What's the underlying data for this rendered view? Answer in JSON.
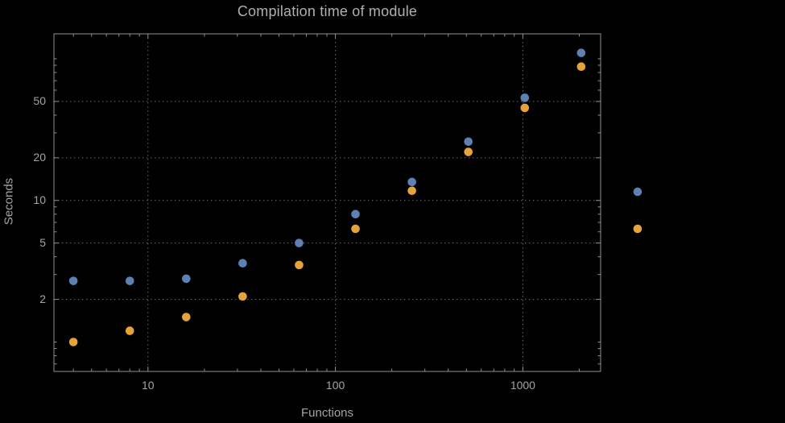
{
  "page": {
    "background": "#000000"
  },
  "chart_data": {
    "type": "scatter",
    "title": "Compilation time of module",
    "xlabel": "Functions",
    "ylabel": "Seconds",
    "x_scale": "log",
    "y_scale": "log",
    "x": [
      4,
      8,
      16,
      32,
      64,
      128,
      256,
      512,
      1024,
      2048,
      4096
    ],
    "series": [
      {
        "name": "series-blue",
        "color": "#5e81b5",
        "values": [
          2.7,
          2.7,
          2.8,
          3.6,
          5.0,
          8.0,
          13.5,
          26,
          53,
          110,
          11.5
        ]
      },
      {
        "name": "series-orange",
        "color": "#e5a33a",
        "values": [
          1.0,
          1.2,
          1.5,
          2.1,
          3.5,
          6.3,
          11.7,
          22,
          45,
          88,
          6.3
        ]
      }
    ],
    "x_ticks": [
      10,
      100,
      1000
    ],
    "x_tick_labels": [
      "10",
      "100",
      "1000"
    ],
    "y_ticks": [
      2,
      5,
      10,
      20,
      50
    ],
    "y_tick_labels": [
      "2",
      "5",
      "10",
      "20",
      "50"
    ],
    "xlim": [
      3.15,
      2600
    ],
    "ylim": [
      0.62,
      150
    ],
    "grid": "dotted-major",
    "legend": "none",
    "colors": {
      "frame": "#8f8f8f",
      "grid": "#6a6a6a",
      "text": "#a3a3a3",
      "title": "#b0b0b0",
      "background": "#000000"
    }
  }
}
